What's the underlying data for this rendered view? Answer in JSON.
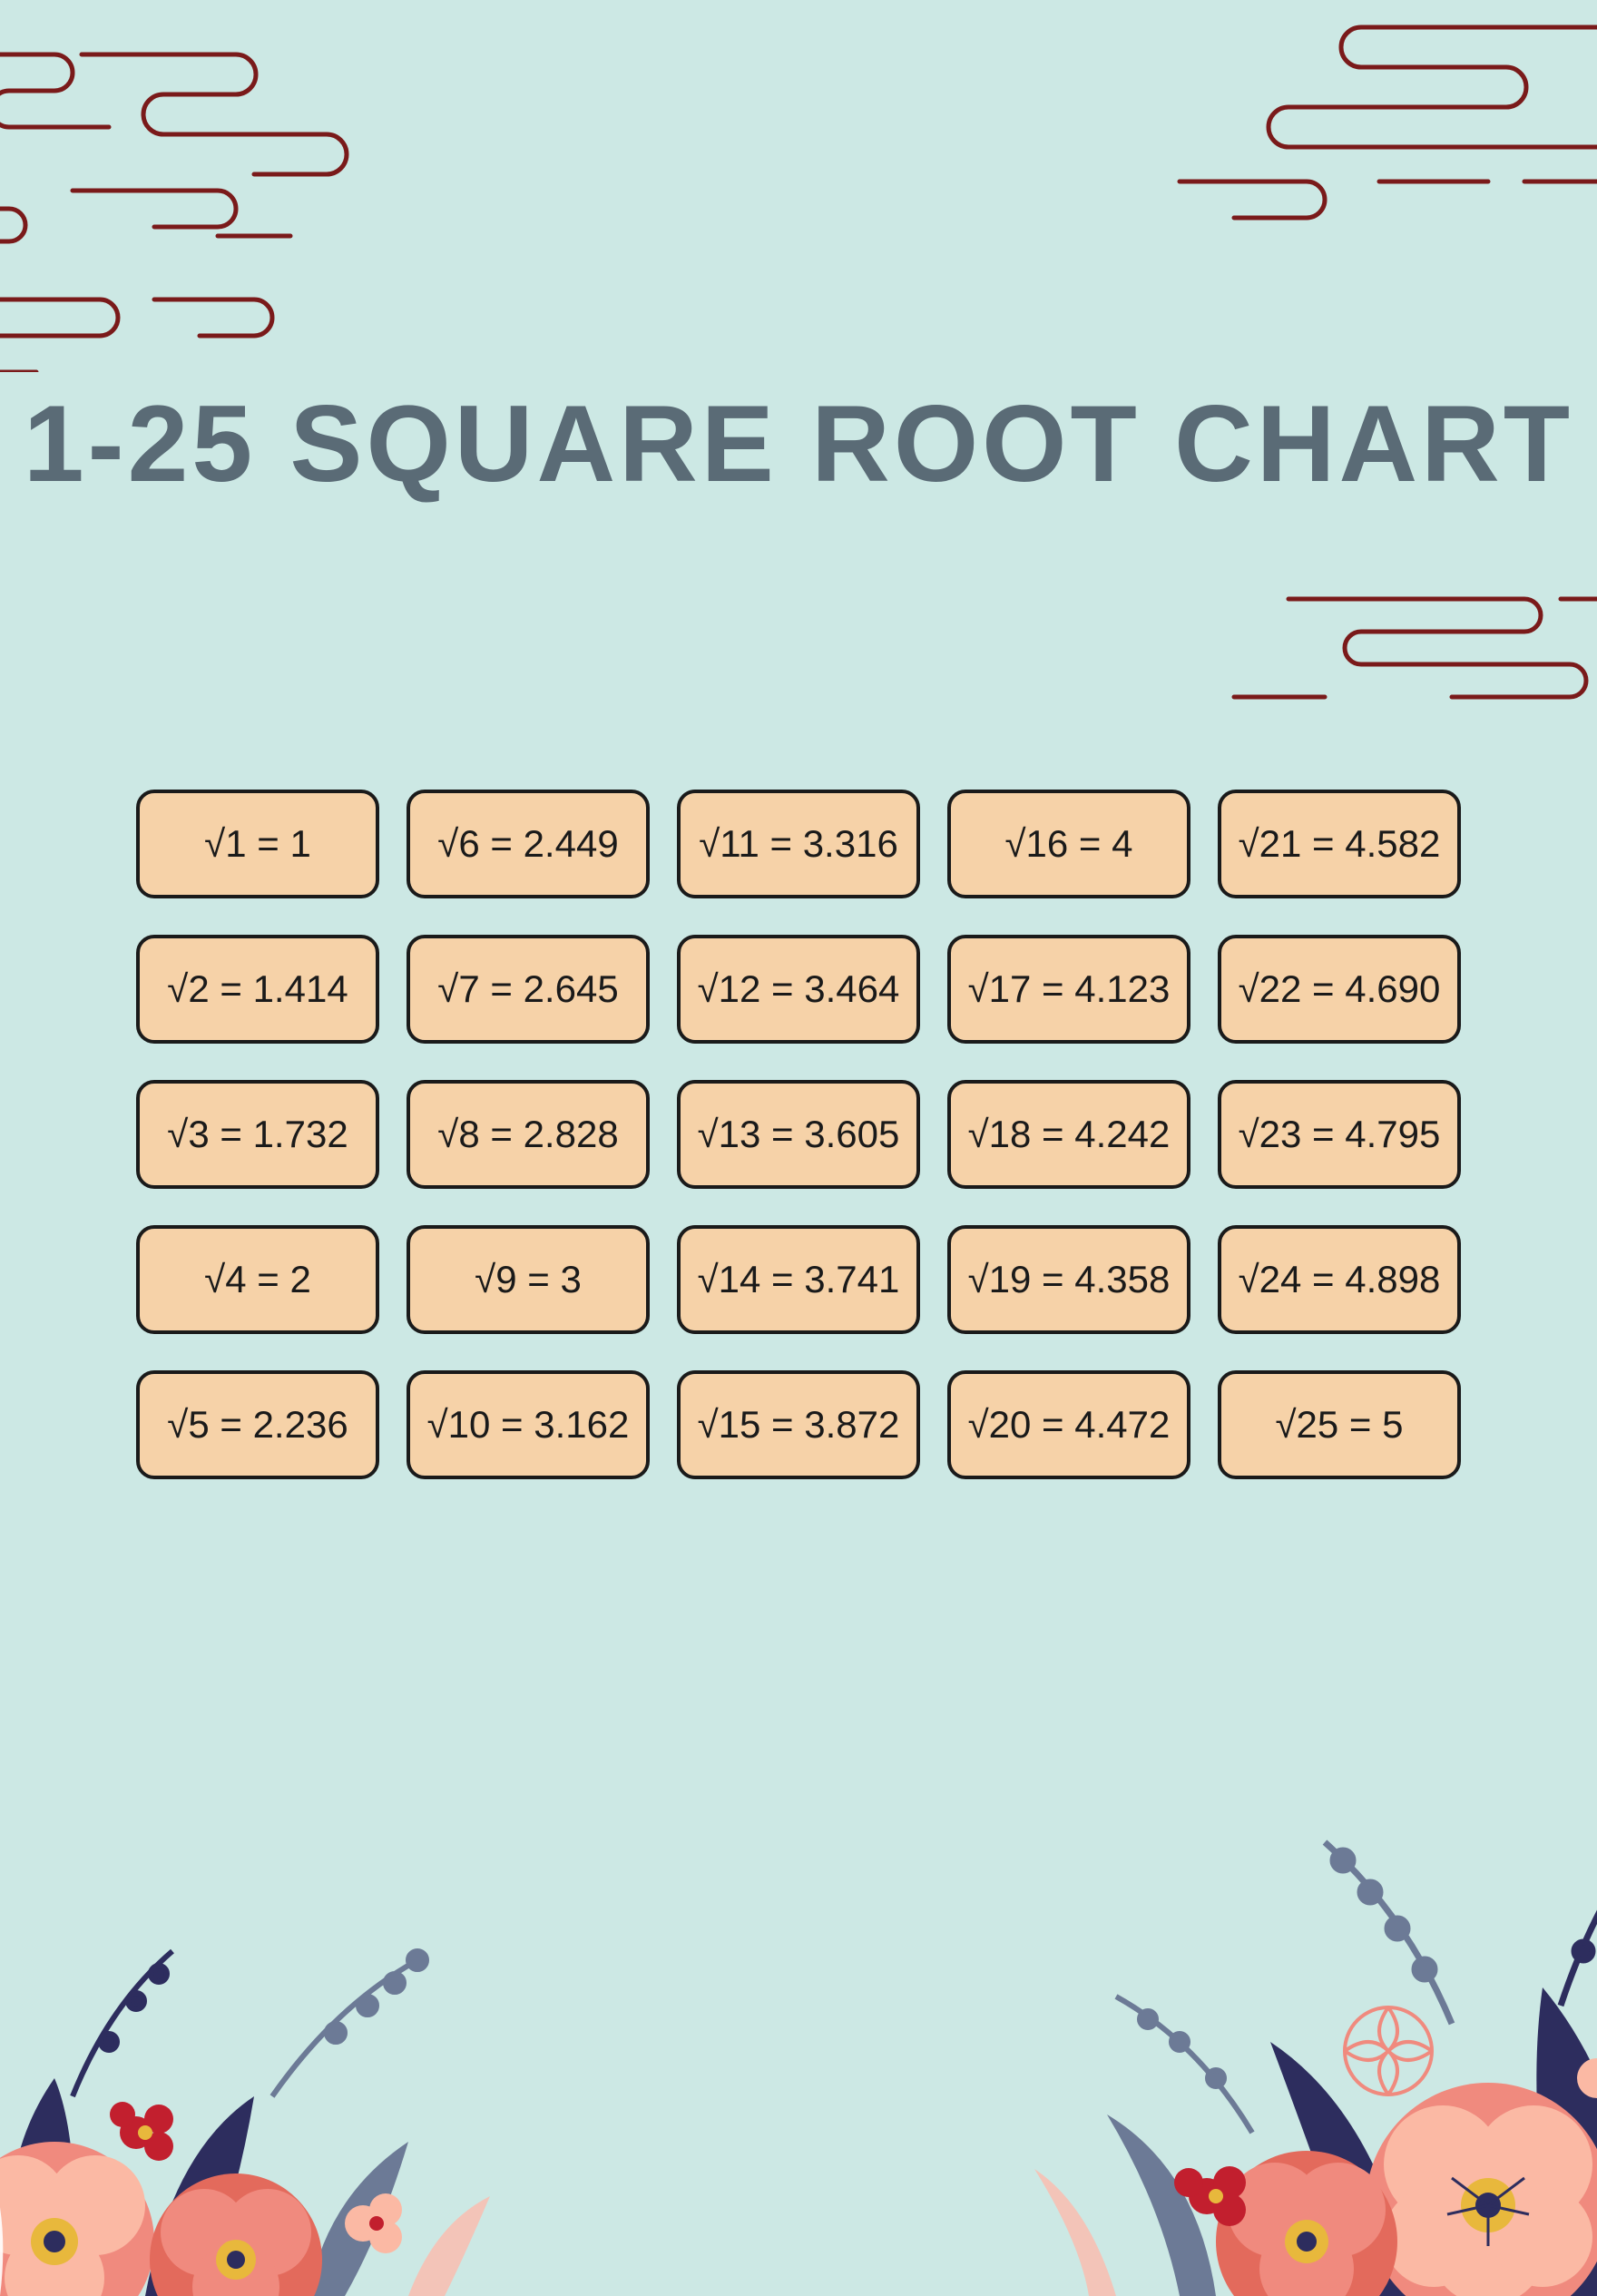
{
  "title": "1-25 SQUARE ROOT CHART",
  "background_color": "#cce8e4",
  "title_color": "#5a6b76",
  "title_fontsize": 120,
  "cell_bg": "#f6d2a8",
  "cell_border": "#1a1a1a",
  "cell_border_width": 4,
  "cell_radius": 20,
  "cell_fontsize": 42,
  "cloud_stroke": "#7a1a1a",
  "grid": {
    "cols": 5,
    "rows": 5,
    "cells": [
      "√1 = 1",
      "√6 = 2.449",
      "√11 = 3.316",
      "√16 = 4",
      "√21 = 4.582",
      "√2 = 1.414",
      "√7 = 2.645",
      "√12 = 3.464",
      "√17 = 4.123",
      "√22 = 4.690",
      "√3 = 1.732",
      "√8 = 2.828",
      "√13 = 3.605",
      "√18 = 4.242",
      "√23 = 4.795",
      "√4 = 2",
      "√9 = 3",
      "√14 = 3.741",
      "√19 = 4.358",
      "√24 = 4.898",
      "√5 = 2.236",
      "√10 = 3.162",
      "√15 = 3.872",
      "√20 = 4.472",
      "√25 = 5"
    ]
  },
  "floral_palette": {
    "flower_main": "#f08a7e",
    "flower_light": "#fbb9a4",
    "flower_dark": "#e36a5c",
    "flower_red": "#c21f2e",
    "center_yellow": "#e8b83c",
    "center_dark": "#2d2d5e",
    "leaf_navy": "#2d2d5e",
    "leaf_slate": "#6c7a96",
    "leaf_pink": "#f3c4b8",
    "leaf_white": "#ffffff"
  }
}
